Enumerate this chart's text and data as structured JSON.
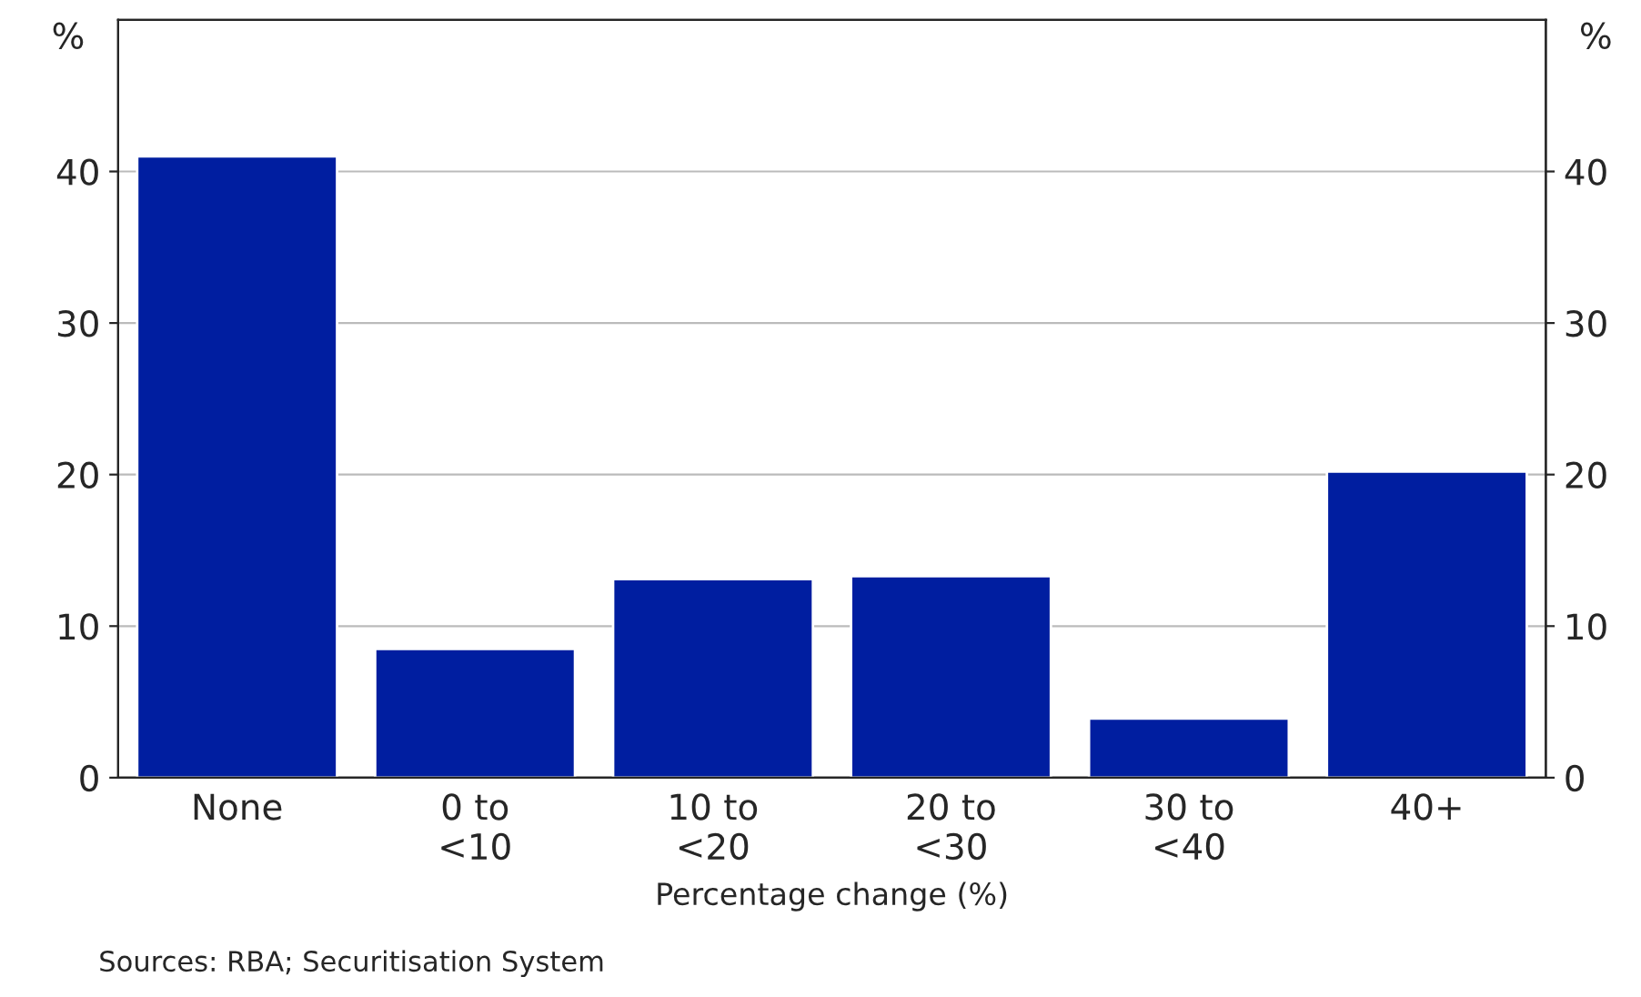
{
  "chart_data": {
    "type": "bar",
    "categories": [
      "None",
      "0 to\n<10",
      "10 to\n<20",
      "20 to\n<30",
      "30 to\n<40",
      "40+"
    ],
    "values": [
      41.0,
      8.5,
      13.1,
      13.3,
      3.9,
      20.2
    ],
    "color": "#001ea0",
    "xlabel": "Percentage change (%)",
    "ylabel": "%",
    "y2label": "%",
    "ylim": [
      0,
      50
    ],
    "yticks": [
      0,
      10,
      20,
      30,
      40
    ],
    "y2lim": [
      0,
      50
    ],
    "y2ticks": [
      0,
      10,
      20,
      30,
      40
    ],
    "grid": "y",
    "annotations": [
      "Sources: RBA; Securitisation System"
    ]
  }
}
